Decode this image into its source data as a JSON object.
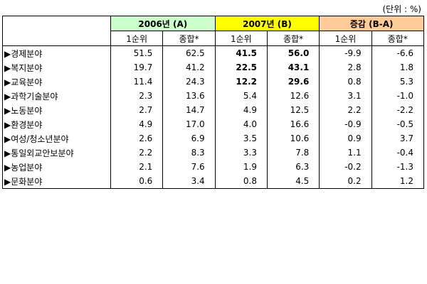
{
  "unit_note": "(단위 : %)",
  "table": {
    "groups": [
      "2006년 (A)",
      "2007년 (B)",
      "증감 (B-A)"
    ],
    "subheaders": [
      "1순위",
      "종합*",
      "1순위",
      "종합*",
      "1순위",
      "종합*"
    ],
    "rows": [
      {
        "label": "▶경제분야",
        "values": [
          "51.5",
          "62.5",
          "41.5",
          "56.0",
          "-9.9",
          "-6.6"
        ]
      },
      {
        "label": "▶복지분야",
        "values": [
          "19.7",
          "41.2",
          "22.5",
          "43.1",
          "2.8",
          "1.8"
        ]
      },
      {
        "label": "▶교육분야",
        "values": [
          "11.4",
          "24.3",
          "12.2",
          "29.6",
          "0.8",
          "5.3"
        ]
      },
      {
        "label": "▶과학기술분야",
        "values": [
          "2.3",
          "13.6",
          "5.4",
          "12.6",
          "3.1",
          "-1.0"
        ]
      },
      {
        "label": "▶노동분야",
        "values": [
          "2.7",
          "14.7",
          "4.9",
          "12.5",
          "2.2",
          "-2.2"
        ]
      },
      {
        "label": "▶환경분야",
        "values": [
          "4.9",
          "17.0",
          "4.0",
          "16.6",
          "-0.9",
          "-0.5"
        ]
      },
      {
        "label": "▶여성/청소년분야",
        "values": [
          "2.6",
          "6.9",
          "3.5",
          "10.6",
          "0.9",
          "3.7"
        ]
      },
      {
        "label": "▶통일외교안보분야",
        "values": [
          "2.2",
          "8.3",
          "3.3",
          "7.8",
          "1.1",
          "-0.4"
        ]
      },
      {
        "label": "▶농업분야",
        "values": [
          "2.1",
          "7.6",
          "1.9",
          "6.3",
          "-0.2",
          "-1.3"
        ]
      },
      {
        "label": "▶문화분야",
        "values": [
          "0.6",
          "3.4",
          "0.8",
          "4.5",
          "0.2",
          "1.2"
        ]
      }
    ]
  }
}
